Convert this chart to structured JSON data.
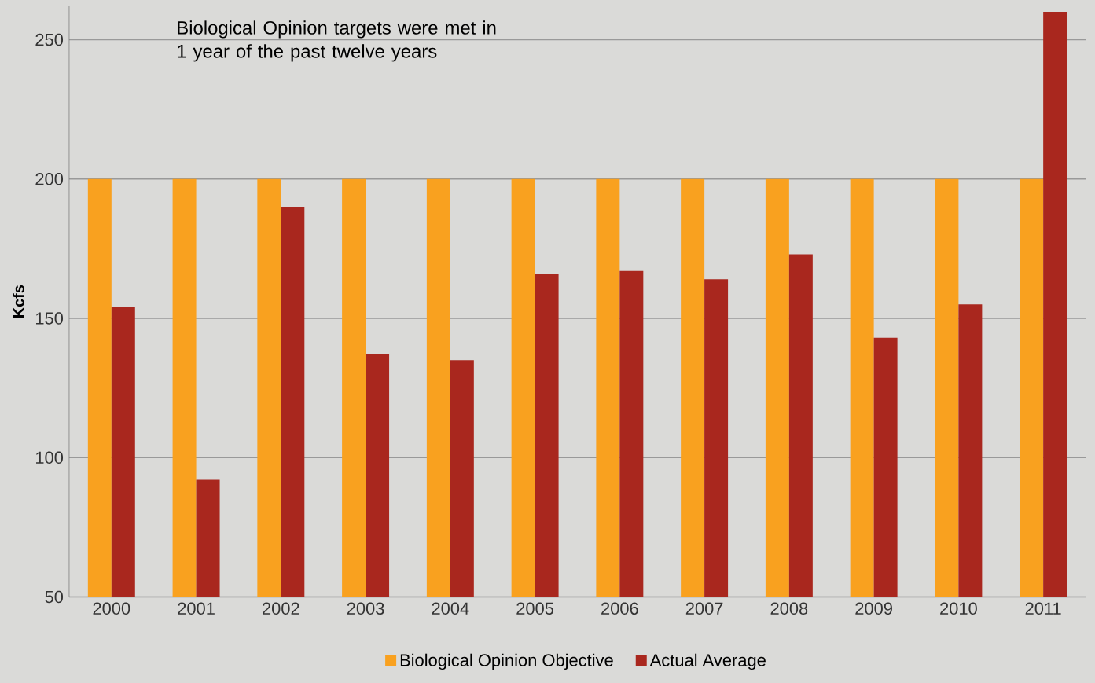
{
  "chart_data": {
    "type": "bar",
    "ylabel": "Kcfs",
    "categories": [
      "2000",
      "2001",
      "2002",
      "2003",
      "2004",
      "2005",
      "2006",
      "2007",
      "2008",
      "2009",
      "2010",
      "2011"
    ],
    "series": [
      {
        "name": "Biological Opinion Objective",
        "color": "#f9a11f",
        "values": [
          200,
          200,
          200,
          200,
          200,
          200,
          200,
          200,
          200,
          200,
          200,
          200
        ]
      },
      {
        "name": "Actual Average",
        "color": "#a9271e",
        "values": [
          154,
          92,
          190,
          137,
          135,
          166,
          167,
          164,
          173,
          143,
          155,
          260
        ]
      }
    ],
    "ylim": [
      50,
      262
    ],
    "yticks": [
      50,
      100,
      150,
      200,
      250
    ],
    "grid": "y",
    "legend": "bottom",
    "annotations": [
      "Biological Opinion targets were met in 1 year of the past twelve years"
    ]
  }
}
